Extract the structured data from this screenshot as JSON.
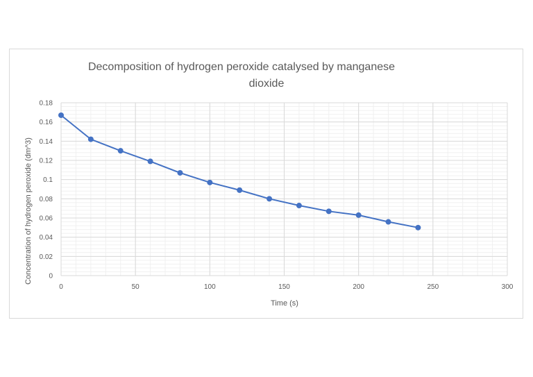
{
  "chart_data": {
    "type": "line",
    "title": "Decomposition of        hydrogen peroxide catalysed by manganese dioxide",
    "title_lines": [
      "Decomposition of        hydrogen peroxide catalysed by manganese",
      "dioxide"
    ],
    "xlabel": "Time (s)",
    "ylabel": "Concentration of hydrogen peroxide (dm^3)",
    "xlim": [
      0,
      300
    ],
    "ylim": [
      0,
      0.18
    ],
    "x_ticks": [
      0,
      50,
      100,
      150,
      200,
      250,
      300
    ],
    "x_tick_labels": [
      "0",
      "50",
      "100",
      "150",
      "200",
      "250",
      "300"
    ],
    "y_ticks": [
      0,
      0.02,
      0.04,
      0.06,
      0.08,
      0.1,
      0.12,
      0.14,
      0.16,
      0.18
    ],
    "y_tick_labels": [
      "0",
      "0.02",
      "0.04",
      "0.06",
      "0.08",
      "0.1",
      "0.12",
      "0.14",
      "0.16",
      "0.18"
    ],
    "grid": true,
    "legend": "none",
    "series": [
      {
        "name": "Concentration",
        "color": "#4472c4",
        "x": [
          0,
          20,
          40,
          60,
          80,
          100,
          120,
          140,
          160,
          180,
          200,
          220,
          240
        ],
        "values": [
          0.167,
          0.142,
          0.13,
          0.119,
          0.107,
          0.097,
          0.089,
          0.08,
          0.073,
          0.067,
          0.063,
          0.056,
          0.05
        ]
      }
    ]
  }
}
